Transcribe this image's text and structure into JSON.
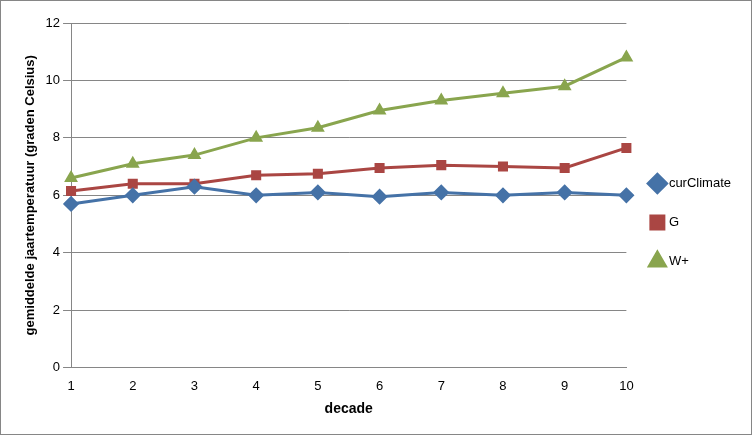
{
  "chart_data": {
    "type": "line",
    "x_label": "decade",
    "y_label": "gemiddelde jaartemperatuur (graden Celsius)",
    "categories": [
      1,
      2,
      3,
      4,
      5,
      6,
      7,
      8,
      9,
      10
    ],
    "series": [
      {
        "name": "curClimate",
        "color": "#4572a7",
        "marker": "diamond",
        "values": [
          5.7,
          6.0,
          6.3,
          6.0,
          6.1,
          5.95,
          6.1,
          6.0,
          6.1,
          6.0
        ]
      },
      {
        "name": "G",
        "color": "#aa4643",
        "marker": "square",
        "values": [
          6.15,
          6.4,
          6.4,
          6.7,
          6.75,
          6.95,
          7.05,
          7.0,
          6.95,
          7.65
        ]
      },
      {
        "name": "W+",
        "color": "#89a54e",
        "marker": "triangle",
        "values": [
          6.6,
          7.1,
          7.4,
          8.0,
          8.35,
          8.95,
          9.3,
          9.55,
          9.8,
          10.8
        ]
      }
    ],
    "ylim": [
      0,
      12
    ],
    "yticks": [
      0,
      2,
      4,
      6,
      8,
      10,
      12
    ],
    "grid": true,
    "legend": "right"
  }
}
